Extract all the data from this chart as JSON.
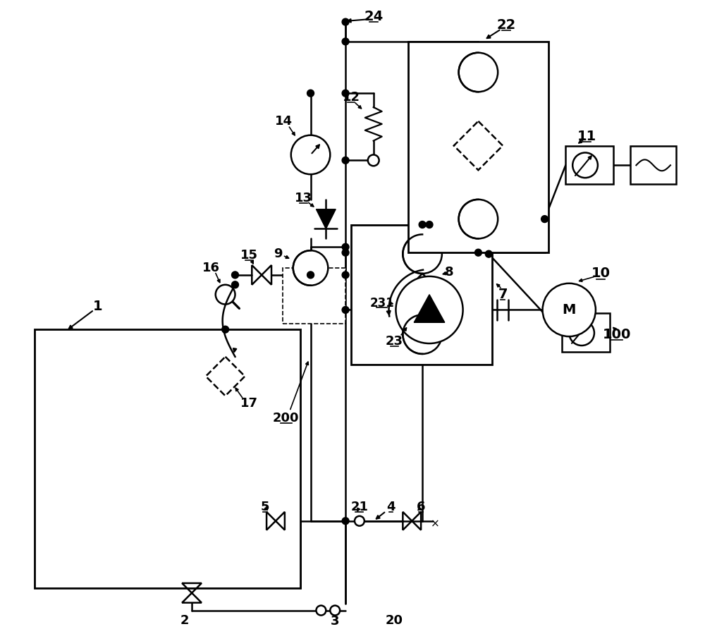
{
  "bg_color": "#ffffff",
  "lw": 1.8,
  "fig_w": 10.0,
  "fig_h": 8.92,
  "dpi": 100
}
